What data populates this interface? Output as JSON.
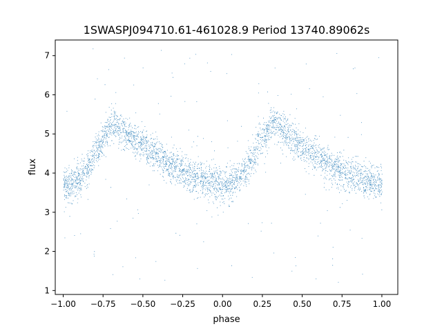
{
  "chart_data": {
    "type": "scatter",
    "title": "1SWASPJ094710.61-461028.9 Period 13740.89062s",
    "xlabel": "phase",
    "ylabel": "flux",
    "xlim": [
      -1.05,
      1.1
    ],
    "ylim": [
      0.9,
      7.4
    ],
    "x_ticks": [
      "-1.00",
      "-0.75",
      "-0.50",
      "-0.25",
      "0.00",
      "0.25",
      "0.50",
      "0.75",
      "1.00"
    ],
    "y_ticks": [
      "1",
      "2",
      "3",
      "4",
      "5",
      "6",
      "7"
    ],
    "grid": false,
    "marker_color": "#1f77b4",
    "phase_range": [
      -1.0,
      1.0
    ],
    "period_seconds": 13740.89062,
    "series": [
      {
        "points": [
          [
            -1.0,
            3.7
          ],
          [
            -0.95,
            3.72
          ],
          [
            -0.9,
            3.85
          ],
          [
            -0.85,
            4.1
          ],
          [
            -0.8,
            4.5
          ],
          [
            -0.75,
            4.9
          ],
          [
            -0.7,
            5.25
          ],
          [
            -0.67,
            5.28
          ],
          [
            -0.65,
            5.2
          ],
          [
            -0.6,
            5.0
          ],
          [
            -0.5,
            4.7
          ],
          [
            -0.4,
            4.4
          ],
          [
            -0.3,
            4.15
          ],
          [
            -0.2,
            3.95
          ],
          [
            -0.1,
            3.8
          ],
          [
            0.0,
            3.7
          ],
          [
            0.05,
            3.72
          ],
          [
            0.1,
            3.85
          ],
          [
            0.15,
            4.1
          ],
          [
            0.2,
            4.5
          ],
          [
            0.25,
            4.9
          ],
          [
            0.3,
            5.25
          ],
          [
            0.33,
            5.28
          ],
          [
            0.35,
            5.2
          ],
          [
            0.4,
            5.0
          ],
          [
            0.5,
            4.7
          ],
          [
            0.6,
            4.4
          ],
          [
            0.7,
            4.15
          ],
          [
            0.8,
            3.95
          ],
          [
            0.9,
            3.8
          ],
          [
            1.0,
            3.7
          ]
        ]
      }
    ]
  }
}
